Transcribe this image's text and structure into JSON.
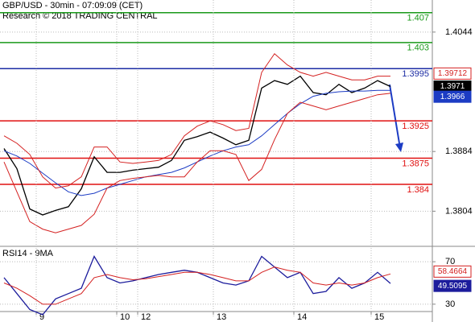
{
  "chart_data": [
    {
      "type": "line",
      "title": "GBP/USD - 30min - 07:09:09 (CET)",
      "subtitle": "Research © 2018 TRADING CENTRAL",
      "x": [
        0,
        8,
        16,
        24,
        32,
        40,
        48,
        56,
        64,
        72,
        80,
        88,
        96,
        104,
        112,
        120,
        128,
        136,
        144,
        152,
        160,
        168,
        176,
        184,
        192,
        200,
        208,
        216,
        224,
        232,
        240
      ],
      "xlim": [
        -2.5,
        265
      ],
      "ylim": [
        1.3758,
        1.4087
      ],
      "yticks": [
        1.4044,
        1.3884,
        1.3804
      ],
      "grid": true,
      "series": [
        {
          "color": "#000000",
          "values": [
            1.3888,
            1.3861,
            1.3807,
            1.3799,
            1.3805,
            1.381,
            1.3834,
            1.3877,
            1.3856,
            1.3856,
            1.3859,
            1.3861,
            1.3863,
            1.3872,
            1.3899,
            1.3904,
            1.391,
            1.3902,
            1.3893,
            1.3899,
            1.3969,
            1.3979,
            1.3974,
            1.3985,
            1.3963,
            1.396,
            1.3974,
            1.3963,
            1.3969,
            1.3979,
            1.3971
          ]
        },
        {
          "color": "#1c3cc4",
          "values": [
            1.3885,
            1.3878,
            1.3868,
            1.3855,
            1.3842,
            1.383,
            1.3825,
            1.3828,
            1.3835,
            1.384,
            1.3845,
            1.385,
            1.3853,
            1.3856,
            1.3862,
            1.387,
            1.3878,
            1.3885,
            1.389,
            1.3893,
            1.3905,
            1.392,
            1.3935,
            1.3948,
            1.3958,
            1.3962,
            1.3964,
            1.3965,
            1.3965,
            1.3966,
            1.3966
          ]
        },
        {
          "color": "#d42020",
          "values": [
            1.3905,
            1.3895,
            1.388,
            1.385,
            1.3835,
            1.3838,
            1.385,
            1.389,
            1.389,
            1.387,
            1.3868,
            1.387,
            1.3872,
            1.388,
            1.3905,
            1.3918,
            1.3925,
            1.392,
            1.3912,
            1.3915,
            1.399,
            1.4015,
            1.4,
            1.399,
            1.3985,
            1.399,
            1.3985,
            1.398,
            1.398,
            1.3985,
            1.3985
          ]
        },
        {
          "color": "#d42020",
          "values": [
            1.387,
            1.383,
            1.379,
            1.378,
            1.3775,
            1.378,
            1.3785,
            1.38,
            1.3835,
            1.3845,
            1.3848,
            1.385,
            1.3852,
            1.385,
            1.385,
            1.387,
            1.3885,
            1.3885,
            1.388,
            1.3845,
            1.386,
            1.39,
            1.3935,
            1.395,
            1.3945,
            1.394,
            1.3945,
            1.395,
            1.3955,
            1.396,
            1.3962
          ]
        }
      ],
      "last_price": 1.39712,
      "levels": [
        {
          "value": 1.407,
          "color": "#1a9a1a"
        },
        {
          "value": 1.403,
          "color": "#1a9a1a"
        },
        {
          "value": 1.3995,
          "color": "#1c2ca4"
        },
        {
          "value": 1.3925,
          "color": "#e01010"
        },
        {
          "value": 1.3875,
          "color": "#e01010"
        },
        {
          "value": 1.384,
          "color": "#e01010"
        }
      ]
    },
    {
      "type": "line",
      "title": "RSI14 - 9MA",
      "x": [
        0,
        8,
        16,
        24,
        32,
        40,
        48,
        56,
        64,
        72,
        80,
        88,
        96,
        104,
        112,
        120,
        128,
        136,
        144,
        152,
        160,
        168,
        176,
        184,
        192,
        200,
        208,
        216,
        224,
        232,
        240
      ],
      "xlim": [
        -2.5,
        265
      ],
      "ylim": [
        17,
        83
      ],
      "yticks": [
        70,
        30
      ],
      "grid": true,
      "xticks": [
        {
          "value": 20,
          "label": "9"
        },
        {
          "value": 70,
          "label": "10"
        },
        {
          "value": 83,
          "label": "12"
        },
        {
          "value": 130,
          "label": "13"
        },
        {
          "value": 180,
          "label": "14"
        },
        {
          "value": 228,
          "label": "15"
        }
      ],
      "series": [
        {
          "color": "#1c1c9c",
          "values": [
            55,
            40,
            25,
            20,
            35,
            40,
            45,
            75,
            55,
            50,
            52,
            55,
            58,
            60,
            62,
            60,
            55,
            50,
            48,
            52,
            75,
            65,
            55,
            60,
            40,
            42,
            55,
            45,
            50,
            60,
            49.5095
          ]
        },
        {
          "color": "#d42020",
          "values": [
            50,
            45,
            38,
            30,
            30,
            35,
            40,
            55,
            58,
            55,
            53,
            54,
            56,
            58,
            60,
            60,
            58,
            55,
            52,
            52,
            60,
            65,
            62,
            60,
            50,
            48,
            50,
            48,
            50,
            55,
            58.4664
          ]
        }
      ]
    }
  ]
}
